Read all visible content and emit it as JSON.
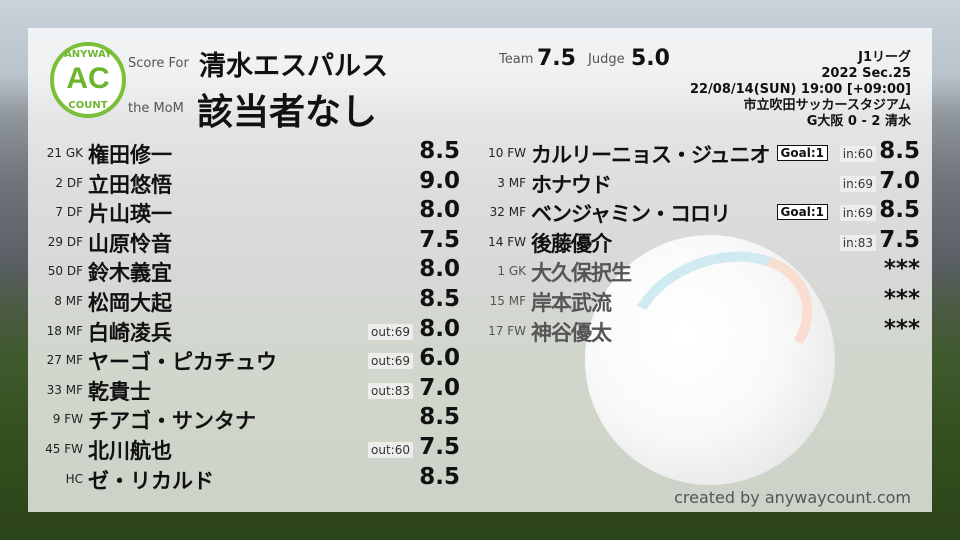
{
  "header": {
    "logo_text": "AC",
    "logo_top": "ANYWAY",
    "logo_bottom": "COUNT",
    "score_for_label": "Score For",
    "team": "清水エスパルス",
    "mom_label": "the MoM",
    "mom": "該当者なし",
    "team_label": "Team",
    "team_score": "7.5",
    "judge_label": "Judge",
    "judge_score": "5.0"
  },
  "match": {
    "league": "J1リーグ",
    "section": "2022 Sec.25",
    "datetime": "22/08/14(SUN) 19:00 [+09:00]",
    "stadium": "市立吹田サッカースタジアム",
    "result": "G大阪 0 - 2 清水"
  },
  "starters": [
    {
      "no": "21",
      "pos": "GK",
      "name": "権田修一",
      "score": "8.5",
      "tag": ""
    },
    {
      "no": "2",
      "pos": "DF",
      "name": "立田悠悟",
      "score": "9.0",
      "tag": ""
    },
    {
      "no": "7",
      "pos": "DF",
      "name": "片山瑛一",
      "score": "8.0",
      "tag": ""
    },
    {
      "no": "29",
      "pos": "DF",
      "name": "山原怜音",
      "score": "7.5",
      "tag": ""
    },
    {
      "no": "50",
      "pos": "DF",
      "name": "鈴木義宜",
      "score": "8.0",
      "tag": ""
    },
    {
      "no": "8",
      "pos": "MF",
      "name": "松岡大起",
      "score": "8.5",
      "tag": ""
    },
    {
      "no": "18",
      "pos": "MF",
      "name": "白崎凌兵",
      "score": "8.0",
      "tag": "out:69"
    },
    {
      "no": "27",
      "pos": "MF",
      "name": "ヤーゴ・ピカチュウ",
      "score": "6.0",
      "tag": "out:69"
    },
    {
      "no": "33",
      "pos": "MF",
      "name": "乾貴士",
      "score": "7.0",
      "tag": "out:83"
    },
    {
      "no": "9",
      "pos": "FW",
      "name": "チアゴ・サンタナ",
      "score": "8.5",
      "tag": ""
    },
    {
      "no": "45",
      "pos": "FW",
      "name": "北川航也",
      "score": "7.5",
      "tag": "out:60"
    },
    {
      "no": "",
      "pos": "HC",
      "name": "ゼ・リカルド",
      "score": "8.5",
      "tag": ""
    }
  ],
  "subs": [
    {
      "no": "10",
      "pos": "FW",
      "name": "カルリーニョス・ジュニオ",
      "score": "8.5",
      "tag": "in:60",
      "goal": "Goal:1",
      "unused": false
    },
    {
      "no": "3",
      "pos": "MF",
      "name": "ホナウド",
      "score": "7.0",
      "tag": "in:69",
      "goal": "",
      "unused": false
    },
    {
      "no": "32",
      "pos": "MF",
      "name": "ベンジャミン・コロリ",
      "score": "8.5",
      "tag": "in:69",
      "goal": "Goal:1",
      "unused": false
    },
    {
      "no": "14",
      "pos": "FW",
      "name": "後藤優介",
      "score": "7.5",
      "tag": "in:83",
      "goal": "",
      "unused": false
    },
    {
      "no": "1",
      "pos": "GK",
      "name": "大久保択生",
      "score": "***",
      "tag": "",
      "goal": "",
      "unused": true
    },
    {
      "no": "15",
      "pos": "MF",
      "name": "岸本武流",
      "score": "***",
      "tag": "",
      "goal": "",
      "unused": true
    },
    {
      "no": "17",
      "pos": "FW",
      "name": "神谷優太",
      "score": "***",
      "tag": "",
      "goal": "",
      "unused": true
    }
  ],
  "footer": "created by anywaycount.com"
}
